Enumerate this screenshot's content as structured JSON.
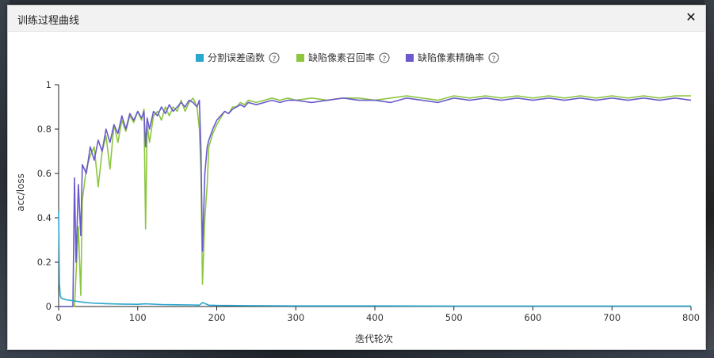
{
  "window": {
    "title": "训练过程曲线",
    "close_glyph": "✕"
  },
  "chart_data": {
    "type": "line",
    "xlabel": "迭代轮次",
    "ylabel": "acc/loss",
    "xlim": [
      0,
      800
    ],
    "ylim": [
      0,
      1
    ],
    "xticks": [
      "0",
      "100",
      "200",
      "300",
      "400",
      "500",
      "600",
      "700",
      "800"
    ],
    "yticks": [
      "0",
      "0.2",
      "0.4",
      "0.6",
      "0.8",
      "1"
    ],
    "legend_position": "top-center",
    "help_glyph": "?",
    "series": [
      {
        "name": "分割误差函数",
        "color": "#2aa6cf",
        "x": [
          0,
          1,
          2,
          3,
          5,
          10,
          20,
          30,
          40,
          60,
          80,
          100,
          110,
          130,
          150,
          170,
          178,
          182,
          186,
          190,
          200,
          240,
          300,
          400,
          500,
          600,
          700,
          800
        ],
        "y": [
          0.43,
          0.1,
          0.05,
          0.04,
          0.035,
          0.03,
          0.025,
          0.02,
          0.016,
          0.013,
          0.011,
          0.01,
          0.012,
          0.009,
          0.008,
          0.007,
          0.006,
          0.018,
          0.012,
          0.006,
          0.005,
          0.004,
          0.003,
          0.003,
          0.002,
          0.002,
          0.002,
          0.002
        ]
      },
      {
        "name": "缺陷像素召回率",
        "color": "#8cc63f",
        "x": [
          0,
          20,
          25,
          28,
          30,
          35,
          40,
          45,
          50,
          55,
          60,
          65,
          70,
          75,
          80,
          85,
          90,
          95,
          100,
          105,
          108,
          110,
          112,
          115,
          120,
          125,
          130,
          135,
          140,
          145,
          150,
          155,
          160,
          165,
          170,
          175,
          178,
          180,
          182,
          185,
          188,
          190,
          195,
          200,
          205,
          210,
          215,
          220,
          225,
          230,
          235,
          240,
          250,
          260,
          270,
          280,
          290,
          300,
          320,
          340,
          360,
          380,
          400,
          420,
          440,
          460,
          480,
          500,
          520,
          540,
          560,
          580,
          600,
          620,
          640,
          660,
          680,
          700,
          720,
          740,
          760,
          780,
          800
        ],
        "y": [
          0.0,
          0.0,
          0.36,
          0.05,
          0.48,
          0.62,
          0.68,
          0.72,
          0.54,
          0.7,
          0.77,
          0.62,
          0.82,
          0.74,
          0.84,
          0.79,
          0.86,
          0.83,
          0.88,
          0.84,
          0.89,
          0.35,
          0.82,
          0.74,
          0.86,
          0.88,
          0.84,
          0.9,
          0.86,
          0.9,
          0.88,
          0.93,
          0.88,
          0.92,
          0.94,
          0.9,
          0.8,
          0.6,
          0.1,
          0.4,
          0.55,
          0.72,
          0.78,
          0.82,
          0.85,
          0.88,
          0.87,
          0.9,
          0.9,
          0.92,
          0.91,
          0.93,
          0.92,
          0.93,
          0.94,
          0.93,
          0.94,
          0.93,
          0.94,
          0.93,
          0.94,
          0.94,
          0.93,
          0.94,
          0.95,
          0.94,
          0.93,
          0.95,
          0.94,
          0.95,
          0.94,
          0.95,
          0.94,
          0.95,
          0.94,
          0.95,
          0.94,
          0.95,
          0.94,
          0.95,
          0.94,
          0.95,
          0.95
        ]
      },
      {
        "name": "缺陷像素精确率",
        "color": "#6a5acd",
        "x": [
          0,
          18,
          20,
          22,
          25,
          28,
          30,
          35,
          40,
          45,
          50,
          55,
          60,
          65,
          70,
          75,
          80,
          85,
          90,
          95,
          100,
          105,
          108,
          110,
          112,
          115,
          120,
          125,
          130,
          135,
          140,
          145,
          150,
          155,
          160,
          165,
          170,
          175,
          178,
          180,
          182,
          185,
          188,
          190,
          195,
          200,
          205,
          210,
          215,
          220,
          225,
          230,
          235,
          240,
          250,
          260,
          270,
          280,
          290,
          300,
          320,
          340,
          360,
          380,
          400,
          420,
          440,
          460,
          480,
          500,
          520,
          540,
          560,
          580,
          600,
          620,
          640,
          660,
          680,
          700,
          720,
          740,
          760,
          780,
          800
        ],
        "y": [
          0.0,
          0.0,
          0.58,
          0.2,
          0.55,
          0.32,
          0.64,
          0.6,
          0.72,
          0.66,
          0.75,
          0.7,
          0.8,
          0.74,
          0.82,
          0.78,
          0.86,
          0.8,
          0.87,
          0.84,
          0.88,
          0.85,
          0.88,
          0.72,
          0.85,
          0.8,
          0.88,
          0.86,
          0.9,
          0.87,
          0.91,
          0.88,
          0.9,
          0.92,
          0.9,
          0.93,
          0.92,
          0.9,
          0.93,
          0.7,
          0.25,
          0.6,
          0.72,
          0.75,
          0.8,
          0.84,
          0.86,
          0.88,
          0.87,
          0.89,
          0.9,
          0.91,
          0.9,
          0.92,
          0.91,
          0.92,
          0.93,
          0.92,
          0.93,
          0.93,
          0.92,
          0.93,
          0.94,
          0.93,
          0.93,
          0.92,
          0.94,
          0.93,
          0.92,
          0.94,
          0.93,
          0.94,
          0.93,
          0.94,
          0.93,
          0.94,
          0.93,
          0.94,
          0.93,
          0.94,
          0.93,
          0.94,
          0.93,
          0.94,
          0.93
        ]
      }
    ]
  }
}
